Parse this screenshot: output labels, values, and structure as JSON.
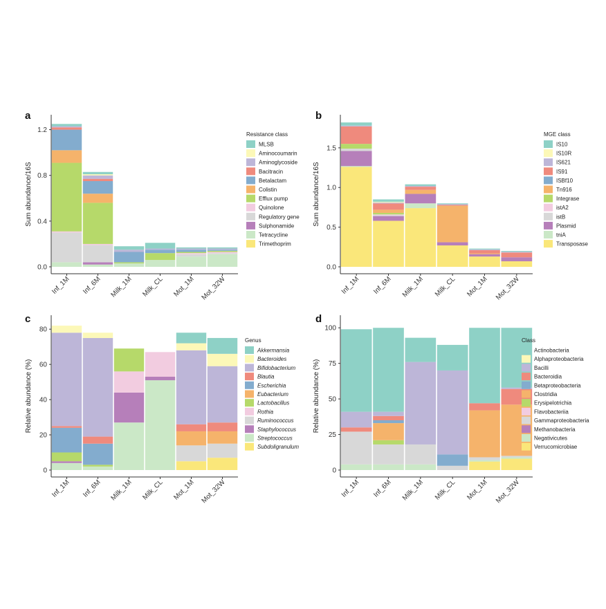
{
  "palette": {
    "c1": "#8ed1c6",
    "c2": "#fcf8b8",
    "c3": "#bdb6d8",
    "c4": "#ef8a7d",
    "c5": "#83acce",
    "c6": "#f5b36b",
    "c7": "#b6d96a",
    "c8": "#f2cce0",
    "c9": "#d8d8d8",
    "c10": "#b67fba",
    "c11": "#cbe8c7",
    "c12": "#fae77a"
  },
  "chart_data": [
    {
      "panel": "a",
      "type": "bar",
      "stacked": true,
      "xlabel": "",
      "ylabel": "Sum abundance/16S",
      "ylim": [
        0,
        1.27
      ],
      "yticks": [
        "0.0",
        "0.4",
        "0.8",
        "1.2"
      ],
      "grid": false,
      "legend_position": "right",
      "legend_title": "Resistance class",
      "categories": [
        "Inf_1M",
        "Inf_6M",
        "Milk_1M",
        "Milk_CL",
        "Mot_1M",
        "Mot_32W"
      ],
      "series": [
        {
          "name": "Trimethoprim",
          "color": "c12",
          "values": [
            0.0,
            0.0,
            0.0,
            0.0,
            0.0,
            0.0
          ]
        },
        {
          "name": "Tetracycline",
          "color": "c11",
          "values": [
            0.04,
            0.02,
            0.03,
            0.06,
            0.09,
            0.11
          ]
        },
        {
          "name": "Sulphonamide",
          "color": "c10",
          "values": [
            0.0,
            0.02,
            0.0,
            0.0,
            0.0,
            0.0
          ]
        },
        {
          "name": "Regulatory gene",
          "color": "c9",
          "values": [
            0.26,
            0.15,
            0.0,
            0.0,
            0.02,
            0.01
          ]
        },
        {
          "name": "Quinolone",
          "color": "c8",
          "values": [
            0.01,
            0.01,
            0.0,
            0.0,
            0.01,
            0.01
          ]
        },
        {
          "name": "Efflux pump",
          "color": "c7",
          "values": [
            0.6,
            0.36,
            0.01,
            0.06,
            0.01,
            0.01
          ]
        },
        {
          "name": "Colistin",
          "color": "c6",
          "values": [
            0.11,
            0.08,
            0.0,
            0.0,
            0.0,
            0.0
          ]
        },
        {
          "name": "Betalactam",
          "color": "c5",
          "values": [
            0.18,
            0.11,
            0.09,
            0.03,
            0.02,
            0.01
          ]
        },
        {
          "name": "Bacitracin",
          "color": "c4",
          "values": [
            0.02,
            0.02,
            0.0,
            0.0,
            0.0,
            0.0
          ]
        },
        {
          "name": "Aminoglycoside",
          "color": "c3",
          "values": [
            0.01,
            0.03,
            0.02,
            0.01,
            0.01,
            0.01
          ]
        },
        {
          "name": "Aminocoumarin",
          "color": "c2",
          "values": [
            0.0,
            0.01,
            0.0,
            0.0,
            0.0,
            0.0
          ]
        },
        {
          "name": "MLSB",
          "color": "c1",
          "values": [
            0.02,
            0.02,
            0.03,
            0.05,
            0.01,
            0.01
          ]
        }
      ]
    },
    {
      "panel": "b",
      "type": "bar",
      "stacked": true,
      "xlabel": "",
      "ylabel": "Sum abundance/16S",
      "ylim": [
        0,
        1.83
      ],
      "yticks": [
        "0.0",
        "0.5",
        "1.0",
        "1.5"
      ],
      "grid": false,
      "legend_position": "right",
      "legend_title": "MGE class",
      "categories": [
        "Inf_1M",
        "Inf_6M",
        "Milk_1M",
        "Milk_CL",
        "Mot_1M",
        "Mot_32W"
      ],
      "series": [
        {
          "name": "Transposase",
          "color": "c12",
          "values": [
            1.26,
            0.58,
            0.74,
            0.27,
            0.13,
            0.07
          ]
        },
        {
          "name": "tniA",
          "color": "c11",
          "values": [
            0.01,
            0.0,
            0.06,
            0.0,
            0.0,
            0.0
          ]
        },
        {
          "name": "Plasmid",
          "color": "c10",
          "values": [
            0.19,
            0.06,
            0.12,
            0.04,
            0.03,
            0.05
          ]
        },
        {
          "name": "istB",
          "color": "c9",
          "values": [
            0.03,
            0.01,
            0.0,
            0.0,
            0.0,
            0.0
          ]
        },
        {
          "name": "istA2",
          "color": "c8",
          "values": [
            0.0,
            0.01,
            0.0,
            0.0,
            0.0,
            0.0
          ]
        },
        {
          "name": "Integrase",
          "color": "c7",
          "values": [
            0.06,
            0.02,
            0.0,
            0.0,
            0.0,
            0.0
          ]
        },
        {
          "name": "Tn916",
          "color": "c6",
          "values": [
            0.0,
            0.04,
            0.05,
            0.46,
            0.01,
            0.0
          ]
        },
        {
          "name": "ISBf10",
          "color": "c5",
          "values": [
            0.0,
            0.0,
            0.0,
            0.0,
            0.0,
            0.0
          ]
        },
        {
          "name": "IS91",
          "color": "c4",
          "values": [
            0.22,
            0.08,
            0.04,
            0.01,
            0.04,
            0.06
          ]
        },
        {
          "name": "IS621",
          "color": "c3",
          "values": [
            0.01,
            0.01,
            0.01,
            0.01,
            0.01,
            0.01
          ]
        },
        {
          "name": "IS10R",
          "color": "c2",
          "values": [
            0.0,
            0.01,
            0.0,
            0.0,
            0.0,
            0.0
          ]
        },
        {
          "name": "IS10",
          "color": "c1",
          "values": [
            0.04,
            0.03,
            0.02,
            0.01,
            0.01,
            0.01
          ]
        }
      ]
    },
    {
      "panel": "c",
      "type": "bar",
      "stacked": true,
      "xlabel": "",
      "ylabel": "Relative abundance (%)",
      "ylim": [
        0,
        84
      ],
      "yticks": [
        "0",
        "20",
        "40",
        "60",
        "80"
      ],
      "grid": false,
      "legend_position": "right",
      "legend_title": "Genus",
      "legend_italic": true,
      "categories": [
        "Inf_1M",
        "Inf_6M",
        "Milk_1M",
        "Milk_CL",
        "Mot_1M",
        "Mot_32W"
      ],
      "series": [
        {
          "name": "Subdoligranulum",
          "color": "c12",
          "values": [
            0,
            0,
            0,
            0,
            5,
            7
          ]
        },
        {
          "name": "Streptococcus",
          "color": "c11",
          "values": [
            4,
            2,
            27,
            51,
            0,
            0
          ]
        },
        {
          "name": "Staphylococcus",
          "color": "c10",
          "values": [
            1,
            0,
            17,
            2,
            0,
            0
          ]
        },
        {
          "name": "Ruminococcus",
          "color": "c9",
          "values": [
            0,
            0,
            0,
            0,
            9,
            8
          ]
        },
        {
          "name": "Rothia",
          "color": "c8",
          "values": [
            0,
            0,
            12,
            14,
            0,
            0
          ]
        },
        {
          "name": "Lactobacillus",
          "color": "c7",
          "values": [
            5,
            1,
            13,
            0,
            0,
            0
          ]
        },
        {
          "name": "Eubacterium",
          "color": "c6",
          "values": [
            0,
            0,
            0,
            0,
            8,
            7
          ]
        },
        {
          "name": "Escherichia",
          "color": "c5",
          "values": [
            14,
            12,
            0,
            0,
            0,
            0
          ]
        },
        {
          "name": "Blautia",
          "color": "c4",
          "values": [
            1,
            4,
            0,
            0,
            4,
            5
          ]
        },
        {
          "name": "Bifidobacterium",
          "color": "c3",
          "values": [
            53,
            56,
            0,
            0,
            42,
            32
          ]
        },
        {
          "name": "Bacteroides",
          "color": "c2",
          "values": [
            4,
            3,
            0,
            0,
            4,
            7
          ]
        },
        {
          "name": "Akkermansia",
          "color": "c1",
          "values": [
            0,
            0,
            0,
            0,
            6,
            9
          ]
        }
      ]
    },
    {
      "panel": "d",
      "type": "bar",
      "stacked": true,
      "xlabel": "",
      "ylabel": "Relative abundance (%)",
      "ylim": [
        0,
        104
      ],
      "yticks": [
        "0",
        "25",
        "50",
        "75",
        "100"
      ],
      "grid": false,
      "legend_position": "right",
      "legend_title": "Class",
      "categories": [
        "Inf_1M",
        "Inf_6M",
        "Milk_1M",
        "Milk_CL",
        "Mot_1M",
        "Mot_32W"
      ],
      "series": [
        {
          "name": "Verrucomicrobiae",
          "color": "c12",
          "values": [
            0,
            0,
            0,
            0,
            6,
            8
          ]
        },
        {
          "name": "Negativicutes",
          "color": "c11",
          "values": [
            4,
            4,
            4,
            0,
            1,
            1
          ]
        },
        {
          "name": "Methanobacteria",
          "color": "c10",
          "values": [
            0,
            0,
            0,
            0,
            0,
            0
          ]
        },
        {
          "name": "Gammaproteobacteria",
          "color": "c9",
          "values": [
            23,
            14,
            14,
            3,
            2,
            1
          ]
        },
        {
          "name": "Flavobacteriia",
          "color": "c8",
          "values": [
            0,
            0,
            0,
            0,
            0,
            0
          ]
        },
        {
          "name": "Erysipelotrichia",
          "color": "c7",
          "values": [
            0,
            3,
            0,
            0,
            0,
            0
          ]
        },
        {
          "name": "Clostridia",
          "color": "c6",
          "values": [
            0,
            12,
            0,
            0,
            33,
            36
          ]
        },
        {
          "name": "Betaproteobacteria",
          "color": "c5",
          "values": [
            0,
            2,
            0,
            8,
            0,
            0
          ]
        },
        {
          "name": "Bacteroidia",
          "color": "c4",
          "values": [
            3,
            3,
            0,
            0,
            5,
            11
          ]
        },
        {
          "name": "Bacilli",
          "color": "c3",
          "values": [
            11,
            3,
            58,
            59,
            0,
            1
          ]
        },
        {
          "name": "Alphaproteobacteria",
          "color": "c2",
          "values": [
            0,
            0,
            0,
            0,
            0,
            0
          ]
        },
        {
          "name": "Actinobacteria",
          "color": "c1",
          "values": [
            58,
            59,
            17,
            18,
            53,
            42
          ]
        }
      ]
    }
  ]
}
